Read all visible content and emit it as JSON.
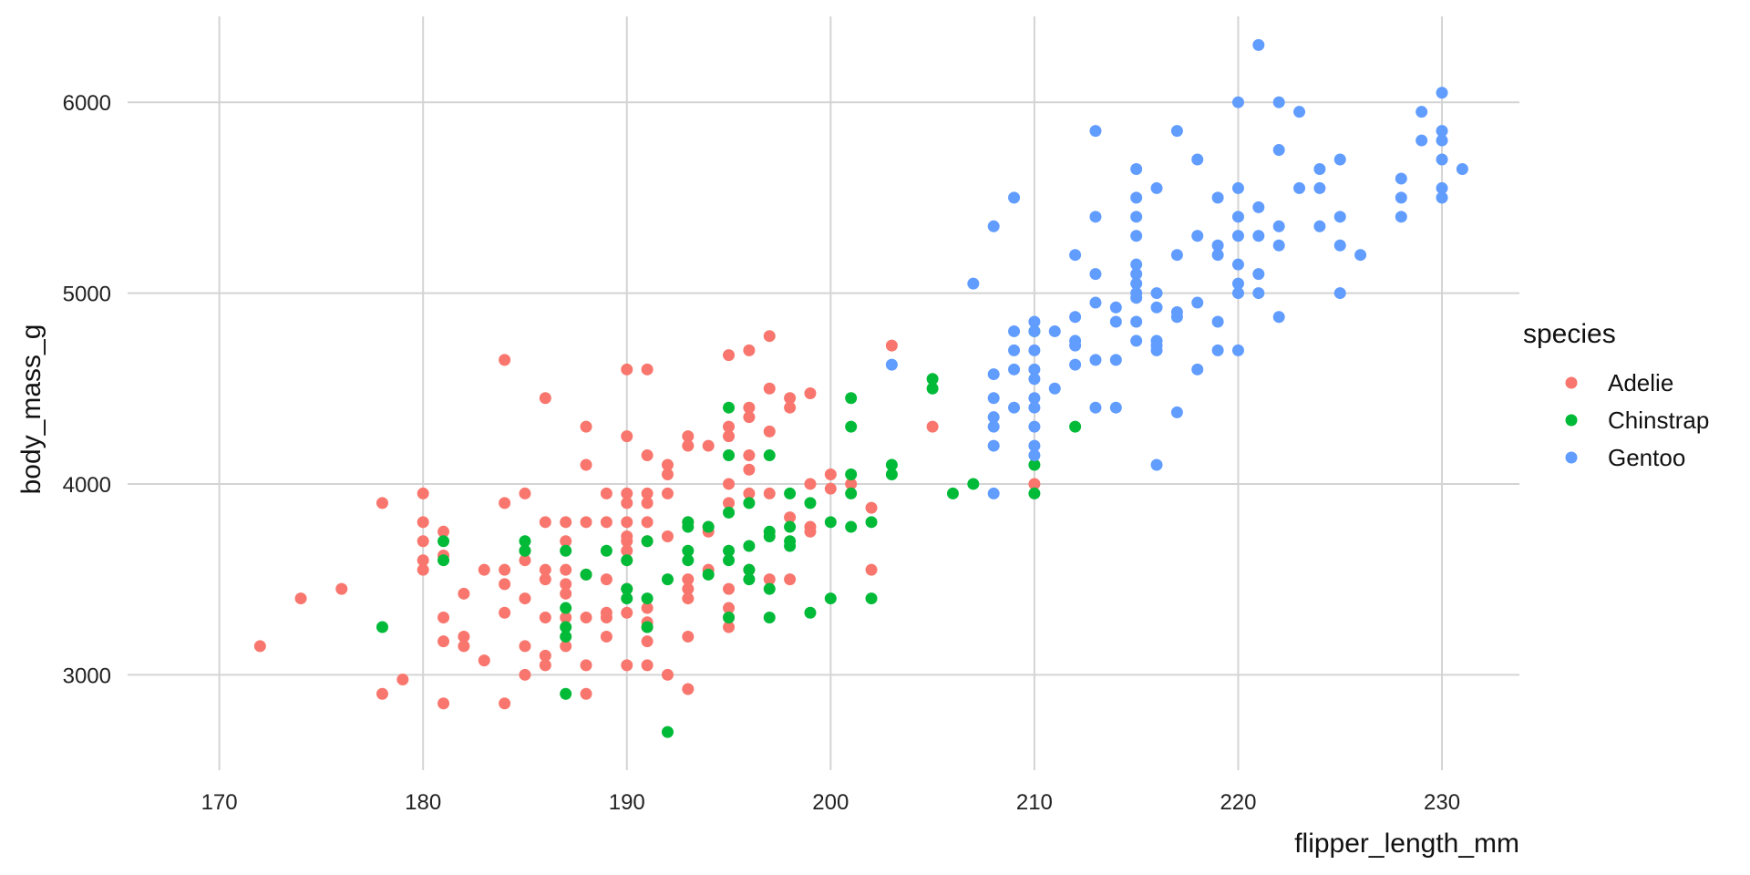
{
  "chart_data": {
    "type": "scatter",
    "title": "",
    "xlabel": "flipper_length_mm",
    "ylabel": "body_mass_g",
    "xlim": [
      165.5,
      233.8
    ],
    "ylim": [
      2500,
      6450
    ],
    "x_ticks": [
      170,
      180,
      190,
      200,
      210,
      220,
      230
    ],
    "y_ticks": [
      3000,
      4000,
      5000,
      6000
    ],
    "grid": true,
    "legend": {
      "title": "species",
      "placement": "right"
    },
    "series": [
      {
        "name": "Adelie",
        "color": "#F8766D",
        "points": [
          [
            172,
            3150
          ],
          [
            174,
            3400
          ],
          [
            176,
            3450
          ],
          [
            178,
            3900
          ],
          [
            178,
            2900
          ],
          [
            179,
            2975
          ],
          [
            180,
            3950
          ],
          [
            180,
            3800
          ],
          [
            180,
            3700
          ],
          [
            180,
            3600
          ],
          [
            180,
            3550
          ],
          [
            181,
            3750
          ],
          [
            181,
            3625
          ],
          [
            181,
            3300
          ],
          [
            181,
            3175
          ],
          [
            181,
            2850
          ],
          [
            182,
            3425
          ],
          [
            182,
            3200
          ],
          [
            182,
            3150
          ],
          [
            183,
            3550
          ],
          [
            183,
            3075
          ],
          [
            184,
            4650
          ],
          [
            184,
            3900
          ],
          [
            184,
            3550
          ],
          [
            184,
            3475
          ],
          [
            184,
            3325
          ],
          [
            184,
            2850
          ],
          [
            185,
            3950
          ],
          [
            185,
            3650
          ],
          [
            185,
            3600
          ],
          [
            185,
            3400
          ],
          [
            185,
            3150
          ],
          [
            185,
            3000
          ],
          [
            186,
            4450
          ],
          [
            186,
            3800
          ],
          [
            186,
            3550
          ],
          [
            186,
            3500
          ],
          [
            186,
            3300
          ],
          [
            186,
            3100
          ],
          [
            186,
            3050
          ],
          [
            187,
            3800
          ],
          [
            187,
            3700
          ],
          [
            187,
            3550
          ],
          [
            187,
            3475
          ],
          [
            187,
            3425
          ],
          [
            187,
            3300
          ],
          [
            187,
            3150
          ],
          [
            188,
            4300
          ],
          [
            188,
            4100
          ],
          [
            188,
            3800
          ],
          [
            188,
            3525
          ],
          [
            188,
            3300
          ],
          [
            188,
            3050
          ],
          [
            188,
            2900
          ],
          [
            189,
            3950
          ],
          [
            189,
            3800
          ],
          [
            189,
            3500
          ],
          [
            189,
            3325
          ],
          [
            189,
            3300
          ],
          [
            189,
            3200
          ],
          [
            190,
            4600
          ],
          [
            190,
            4250
          ],
          [
            190,
            3950
          ],
          [
            190,
            3900
          ],
          [
            190,
            3800
          ],
          [
            190,
            3725
          ],
          [
            190,
            3700
          ],
          [
            190,
            3650
          ],
          [
            190,
            3600
          ],
          [
            190,
            3450
          ],
          [
            190,
            3325
          ],
          [
            190,
            3050
          ],
          [
            191,
            4600
          ],
          [
            191,
            4150
          ],
          [
            191,
            3950
          ],
          [
            191,
            3900
          ],
          [
            191,
            3800
          ],
          [
            191,
            3700
          ],
          [
            191,
            3350
          ],
          [
            191,
            3275
          ],
          [
            191,
            3250
          ],
          [
            191,
            3175
          ],
          [
            191,
            3050
          ],
          [
            192,
            4100
          ],
          [
            192,
            4050
          ],
          [
            192,
            3950
          ],
          [
            192,
            3725
          ],
          [
            192,
            3000
          ],
          [
            193,
            4250
          ],
          [
            193,
            4200
          ],
          [
            193,
            3800
          ],
          [
            193,
            3500
          ],
          [
            193,
            3450
          ],
          [
            193,
            3400
          ],
          [
            193,
            3200
          ],
          [
            193,
            2925
          ],
          [
            194,
            4200
          ],
          [
            194,
            3775
          ],
          [
            194,
            3750
          ],
          [
            194,
            3550
          ],
          [
            195,
            4675
          ],
          [
            195,
            4300
          ],
          [
            195,
            4250
          ],
          [
            195,
            4000
          ],
          [
            195,
            3900
          ],
          [
            195,
            3450
          ],
          [
            195,
            3350
          ],
          [
            195,
            3300
          ],
          [
            195,
            3250
          ],
          [
            196,
            4700
          ],
          [
            196,
            4400
          ],
          [
            196,
            4350
          ],
          [
            196,
            4150
          ],
          [
            196,
            4075
          ],
          [
            196,
            3950
          ],
          [
            196,
            3550
          ],
          [
            197,
            4775
          ],
          [
            197,
            4500
          ],
          [
            197,
            4275
          ],
          [
            197,
            3950
          ],
          [
            197,
            3500
          ],
          [
            198,
            4450
          ],
          [
            198,
            4400
          ],
          [
            198,
            3825
          ],
          [
            198,
            3500
          ],
          [
            199,
            4475
          ],
          [
            199,
            4000
          ],
          [
            199,
            3775
          ],
          [
            199,
            3750
          ],
          [
            200,
            4050
          ],
          [
            200,
            3975
          ],
          [
            201,
            4000
          ],
          [
            202,
            3875
          ],
          [
            202,
            3550
          ],
          [
            203,
            4725
          ],
          [
            205,
            4300
          ],
          [
            210,
            4000
          ]
        ]
      },
      {
        "name": "Chinstrap",
        "color": "#00BA38",
        "points": [
          [
            178,
            3250
          ],
          [
            181,
            3700
          ],
          [
            181,
            3600
          ],
          [
            185,
            3700
          ],
          [
            185,
            3650
          ],
          [
            187,
            3650
          ],
          [
            187,
            3350
          ],
          [
            187,
            3250
          ],
          [
            187,
            3200
          ],
          [
            187,
            2900
          ],
          [
            188,
            3525
          ],
          [
            189,
            3650
          ],
          [
            190,
            3600
          ],
          [
            190,
            3450
          ],
          [
            190,
            3400
          ],
          [
            191,
            3700
          ],
          [
            191,
            3400
          ],
          [
            191,
            3250
          ],
          [
            192,
            3500
          ],
          [
            192,
            2700
          ],
          [
            193,
            3800
          ],
          [
            193,
            3775
          ],
          [
            193,
            3650
          ],
          [
            193,
            3600
          ],
          [
            194,
            3775
          ],
          [
            194,
            3525
          ],
          [
            195,
            4400
          ],
          [
            195,
            4150
          ],
          [
            195,
            3850
          ],
          [
            195,
            3650
          ],
          [
            195,
            3600
          ],
          [
            195,
            3300
          ],
          [
            196,
            3900
          ],
          [
            196,
            3675
          ],
          [
            196,
            3550
          ],
          [
            196,
            3500
          ],
          [
            197,
            4150
          ],
          [
            197,
            3750
          ],
          [
            197,
            3725
          ],
          [
            197,
            3450
          ],
          [
            197,
            3300
          ],
          [
            198,
            3950
          ],
          [
            198,
            3775
          ],
          [
            198,
            3700
          ],
          [
            198,
            3675
          ],
          [
            199,
            3900
          ],
          [
            199,
            3325
          ],
          [
            200,
            3800
          ],
          [
            200,
            3400
          ],
          [
            201,
            4450
          ],
          [
            201,
            4300
          ],
          [
            201,
            4050
          ],
          [
            201,
            3950
          ],
          [
            201,
            3775
          ],
          [
            202,
            3800
          ],
          [
            202,
            3400
          ],
          [
            203,
            4100
          ],
          [
            203,
            4050
          ],
          [
            205,
            4550
          ],
          [
            205,
            4500
          ],
          [
            206,
            3950
          ],
          [
            207,
            4000
          ],
          [
            210,
            4800
          ],
          [
            210,
            4100
          ],
          [
            210,
            3950
          ],
          [
            212,
            4300
          ]
        ]
      },
      {
        "name": "Gentoo",
        "color": "#619CFF",
        "points": [
          [
            203,
            4625
          ],
          [
            207,
            5050
          ],
          [
            208,
            5350
          ],
          [
            208,
            4575
          ],
          [
            208,
            4450
          ],
          [
            208,
            4350
          ],
          [
            208,
            4300
          ],
          [
            208,
            4200
          ],
          [
            208,
            3950
          ],
          [
            209,
            5500
          ],
          [
            209,
            4800
          ],
          [
            209,
            4700
          ],
          [
            209,
            4600
          ],
          [
            209,
            4400
          ],
          [
            210,
            4850
          ],
          [
            210,
            4800
          ],
          [
            210,
            4700
          ],
          [
            210,
            4600
          ],
          [
            210,
            4550
          ],
          [
            210,
            4450
          ],
          [
            210,
            4400
          ],
          [
            210,
            4300
          ],
          [
            210,
            4200
          ],
          [
            210,
            4150
          ],
          [
            211,
            4800
          ],
          [
            211,
            4500
          ],
          [
            212,
            5200
          ],
          [
            212,
            4875
          ],
          [
            212,
            4750
          ],
          [
            212,
            4725
          ],
          [
            212,
            4625
          ],
          [
            213,
            5850
          ],
          [
            213,
            5400
          ],
          [
            213,
            5100
          ],
          [
            213,
            4950
          ],
          [
            213,
            4650
          ],
          [
            213,
            4400
          ],
          [
            214,
            4925
          ],
          [
            214,
            4850
          ],
          [
            214,
            4650
          ],
          [
            214,
            4400
          ],
          [
            215,
            5650
          ],
          [
            215,
            5500
          ],
          [
            215,
            5400
          ],
          [
            215,
            5300
          ],
          [
            215,
            5150
          ],
          [
            215,
            5100
          ],
          [
            215,
            5050
          ],
          [
            215,
            5000
          ],
          [
            215,
            4975
          ],
          [
            215,
            4850
          ],
          [
            215,
            4750
          ],
          [
            216,
            5550
          ],
          [
            216,
            5000
          ],
          [
            216,
            4925
          ],
          [
            216,
            4750
          ],
          [
            216,
            4725
          ],
          [
            216,
            4700
          ],
          [
            216,
            4100
          ],
          [
            217,
            5850
          ],
          [
            217,
            5200
          ],
          [
            217,
            4900
          ],
          [
            217,
            4875
          ],
          [
            217,
            4375
          ],
          [
            218,
            5700
          ],
          [
            218,
            5300
          ],
          [
            218,
            4950
          ],
          [
            218,
            4600
          ],
          [
            219,
            5500
          ],
          [
            219,
            5250
          ],
          [
            219,
            5200
          ],
          [
            219,
            4850
          ],
          [
            219,
            4700
          ],
          [
            220,
            6000
          ],
          [
            220,
            5550
          ],
          [
            220,
            5400
          ],
          [
            220,
            5300
          ],
          [
            220,
            5150
          ],
          [
            220,
            5050
          ],
          [
            220,
            5000
          ],
          [
            220,
            4700
          ],
          [
            221,
            6300
          ],
          [
            221,
            5450
          ],
          [
            221,
            5300
          ],
          [
            221,
            5100
          ],
          [
            221,
            5000
          ],
          [
            222,
            6000
          ],
          [
            222,
            5750
          ],
          [
            222,
            5350
          ],
          [
            222,
            5250
          ],
          [
            222,
            4875
          ],
          [
            223,
            5950
          ],
          [
            223,
            5550
          ],
          [
            224,
            5650
          ],
          [
            224,
            5550
          ],
          [
            224,
            5350
          ],
          [
            225,
            5700
          ],
          [
            225,
            5400
          ],
          [
            225,
            5250
          ],
          [
            225,
            5000
          ],
          [
            226,
            5200
          ],
          [
            228,
            5600
          ],
          [
            228,
            5500
          ],
          [
            228,
            5400
          ],
          [
            229,
            5950
          ],
          [
            229,
            5800
          ],
          [
            230,
            6050
          ],
          [
            230,
            5850
          ],
          [
            230,
            5800
          ],
          [
            230,
            5700
          ],
          [
            230,
            5550
          ],
          [
            230,
            5500
          ],
          [
            231,
            5650
          ]
        ]
      }
    ]
  }
}
